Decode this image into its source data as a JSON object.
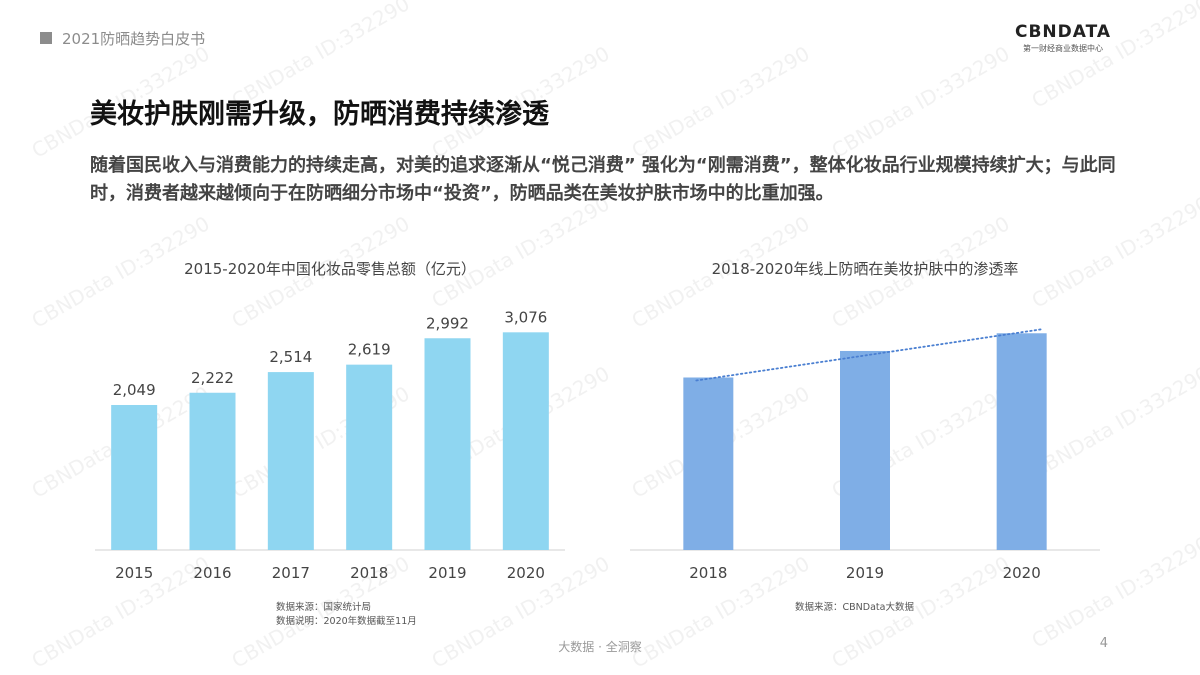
{
  "header": {
    "title": "2021防晒趋势白皮书"
  },
  "logo": {
    "main": "CBNDATA",
    "sub": "第一财经商业数据中心"
  },
  "main_title": "美妆护肤刚需升级，防晒消费持续渗透",
  "description": "随着国民收入与消费能力的持续走高，对美的追求逐渐从“悦己消费” 强化为“刚需消费”，整体化妆品行业规模持续扩大；与此同时，消费者越来越倾向于在防晒细分市场中“投资”，防晒品类在美妆护肤市场中的比重加强。",
  "chart_data": [
    {
      "type": "bar",
      "title": "2015-2020年中国化妆品零售总额（亿元）",
      "categories": [
        "2015",
        "2016",
        "2017",
        "2018",
        "2019",
        "2020"
      ],
      "values": [
        2049,
        2222,
        2514,
        2619,
        2992,
        3076
      ],
      "data_labels": [
        "2,049",
        "2,222",
        "2,514",
        "2,619",
        "2,992",
        "3,076"
      ],
      "ylim": [
        0,
        3250
      ],
      "color": "#8fd6f1",
      "source": "数据来源：国家统计局",
      "note": "数据说明：2020年数据截至11月"
    },
    {
      "type": "bar",
      "title": "2018-2020年线上防晒在美妆护肤中的渗透率",
      "categories": [
        "2018",
        "2019",
        "2020"
      ],
      "values": [
        0.78,
        0.9,
        0.98
      ],
      "ylim": [
        0,
        1.04
      ],
      "trendline": "dotted",
      "color": "#7faee6",
      "source": "数据来源：CBNData大数据"
    }
  ],
  "footer": {
    "text": "大数据 · 全洞察",
    "page": "4"
  },
  "watermark": "CBNData ID:332290"
}
